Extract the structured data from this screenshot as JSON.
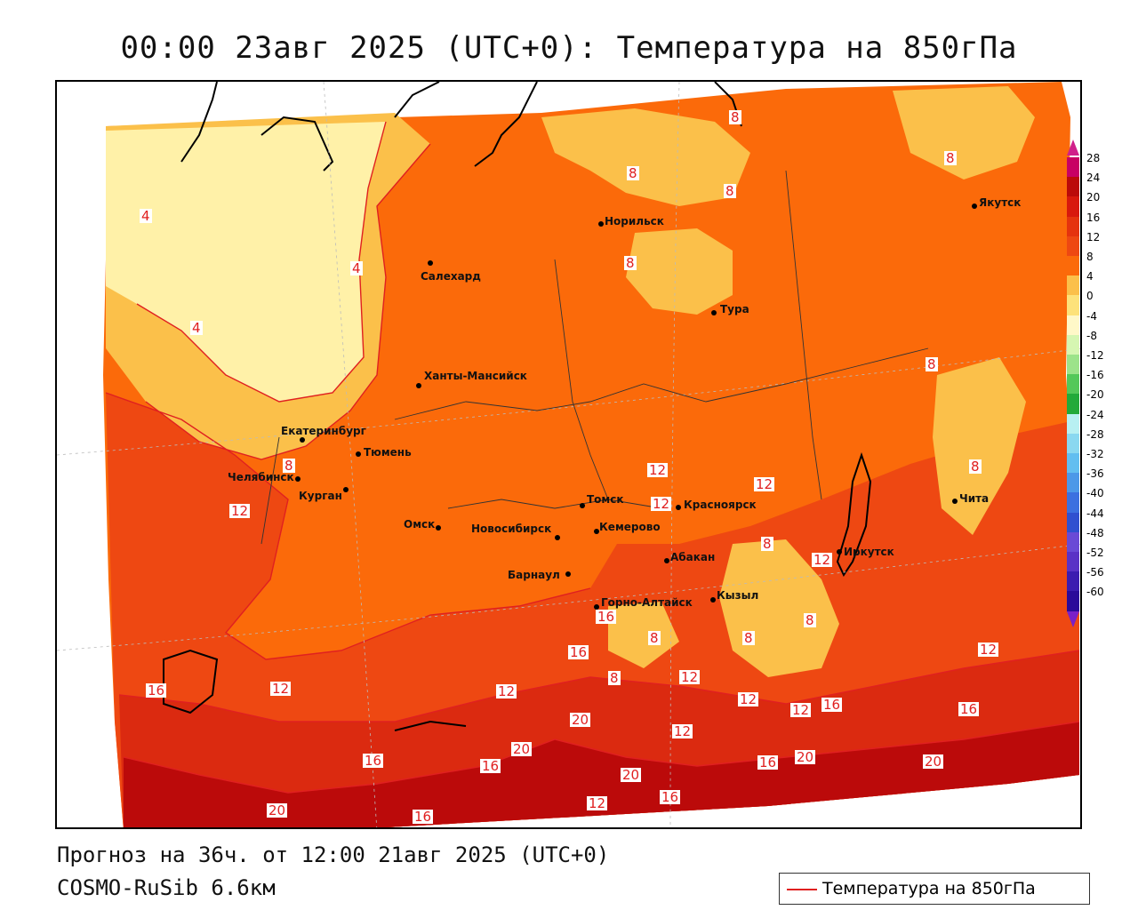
{
  "title": "00:00 23авг 2025 (UTC+0): Температура на 850гПа",
  "footer": {
    "forecast": "Прогноз на 36ч. от 12:00 21авг 2025 (UTC+0)",
    "model": "COSMO-RuSib 6.6км"
  },
  "key": {
    "label": "Температура на 850гПа",
    "line_color": "#e02020"
  },
  "colors": {
    "band_lt4": "#fff1a8",
    "band_4_8": "#fbc04a",
    "band_8_12": "#fb6a0a",
    "band_12_16": "#ee4812",
    "band_16_20": "#db2a10",
    "band_ge20": "#bb0a0a",
    "contour": "#e02020"
  },
  "legend": {
    "ticks": [
      "28",
      "24",
      "20",
      "16",
      "12",
      "8",
      "4",
      "0",
      "-4",
      "-8",
      "-12",
      "-16",
      "-20",
      "-24",
      "-28",
      "-32",
      "-36",
      "-40",
      "-44",
      "-48",
      "-52",
      "-56",
      "-60"
    ],
    "colors": [
      "#c80064",
      "#bb0a0a",
      "#d8180d",
      "#e5330e",
      "#ee4812",
      "#fb6a0a",
      "#fbc04a",
      "#fde27a",
      "#fff8c8",
      "#d6f6b2",
      "#9ce38a",
      "#54c85a",
      "#22aa3a",
      "#b8f0f2",
      "#8ad8f0",
      "#62bef0",
      "#4c98e8",
      "#3c70e0",
      "#3050d0",
      "#6a4ad6",
      "#5a32c6",
      "#3c1cb0",
      "#2a0a9a"
    ]
  },
  "cities": [
    {
      "name": "Салехард"
    },
    {
      "name": "Норильск"
    },
    {
      "name": "Тура"
    },
    {
      "name": "Якутск"
    },
    {
      "name": "Ханты-Мансийск"
    },
    {
      "name": "Екатеринбург"
    },
    {
      "name": "Тюмень"
    },
    {
      "name": "Челябинск"
    },
    {
      "name": "Курган"
    },
    {
      "name": "Омск"
    },
    {
      "name": "Новосибирск"
    },
    {
      "name": "Томск"
    },
    {
      "name": "Кемерово"
    },
    {
      "name": "Красноярск"
    },
    {
      "name": "Барнаул"
    },
    {
      "name": "Абакан"
    },
    {
      "name": "Горно-Алтайск"
    },
    {
      "name": "Кызыл"
    },
    {
      "name": "Иркутск"
    },
    {
      "name": "Чита"
    }
  ],
  "contour_labels": [
    "8",
    "8",
    "8",
    "8",
    "8",
    "4",
    "4",
    "4",
    "8",
    "8",
    "8",
    "12",
    "12",
    "12",
    "12",
    "8",
    "12",
    "8",
    "8",
    "8",
    "16",
    "16",
    "8",
    "12",
    "12",
    "12",
    "12",
    "16",
    "12",
    "16",
    "12",
    "16",
    "20",
    "20",
    "16",
    "16",
    "12",
    "20",
    "20",
    "16",
    "20",
    "12",
    "16",
    "20",
    "16"
  ]
}
